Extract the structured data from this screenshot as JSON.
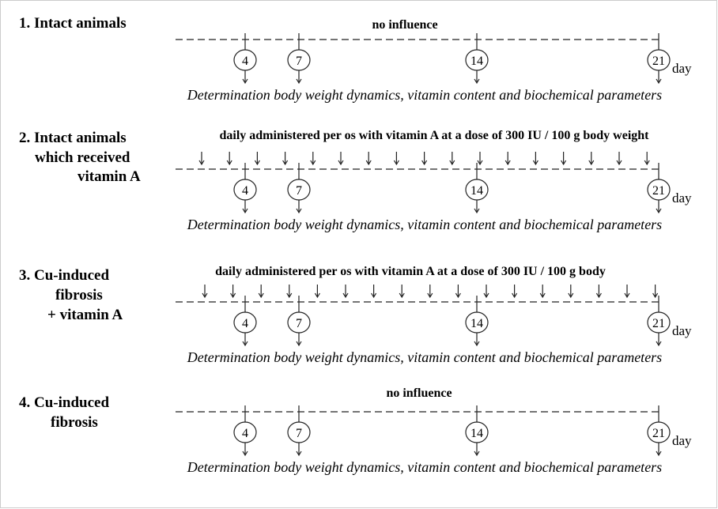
{
  "groups": [
    {
      "label": [
        "1. Intact animals"
      ],
      "treatment": "no influence",
      "days": [
        4,
        7,
        14,
        21
      ],
      "day_unit": "day",
      "outcome": "Determination body weight dynamics, vitamin content and biochemical parameters"
    },
    {
      "label": [
        "2. Intact animals",
        "which received",
        "vitamin A"
      ],
      "treatment": "daily administered per os with vitamin A at a dose of 300 IU / 100 g body weight",
      "days": [
        4,
        7,
        14,
        21
      ],
      "day_unit": "day",
      "outcome": "Determination body weight dynamics, vitamin content and biochemical parameters"
    },
    {
      "label": [
        "3. Cu-induced",
        "fibrosis",
        "+ vitamin A"
      ],
      "treatment": "daily administered per os with vitamin A at a dose of 300 IU / 100 g body",
      "days": [
        4,
        7,
        14,
        21
      ],
      "day_unit": "day",
      "outcome": "Determination body weight dynamics, vitamin content and biochemical parameters"
    },
    {
      "label": [
        "4. Cu-induced",
        "fibrosis"
      ],
      "treatment": "no influence",
      "days": [
        4,
        7,
        14,
        21
      ],
      "day_unit": "day",
      "outcome": "Determination body weight dynamics, vitamin content and biochemical parameters"
    }
  ]
}
